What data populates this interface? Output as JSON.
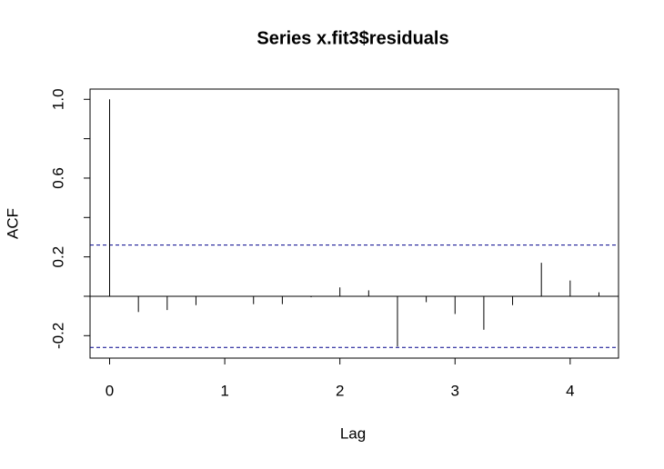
{
  "chart_data": {
    "type": "acf",
    "title": "Series  x.fit3$residuals",
    "x_label": "Lag",
    "y_label": "ACF",
    "x": [
      0,
      0.25,
      0.5,
      0.75,
      1,
      1.25,
      1.5,
      1.75,
      2,
      2.25,
      2.5,
      2.75,
      3,
      3.25,
      3.5,
      3.75,
      4,
      4.25
    ],
    "values": [
      1,
      -0.08,
      -0.07,
      -0.045,
      0,
      -0.04,
      -0.04,
      -0.005,
      0.045,
      0.03,
      -0.255,
      -0.03,
      -0.09,
      -0.17,
      -0.045,
      0.17,
      0.08,
      0.02
    ],
    "ci": [
      0.26,
      -0.26
    ],
    "ci_color": "#00008b",
    "color": "#000000",
    "xlim": [
      -0.17,
      4.42
    ],
    "ylim": [
      -0.314,
      1.052
    ],
    "xticks": [
      0,
      1,
      2,
      3,
      4
    ],
    "yticks": [
      {
        "value": 1,
        "label": "1.0"
      },
      0.6,
      0.2,
      -0.2
    ],
    "yminorticks": [
      0.8,
      0.4,
      0
    ]
  }
}
